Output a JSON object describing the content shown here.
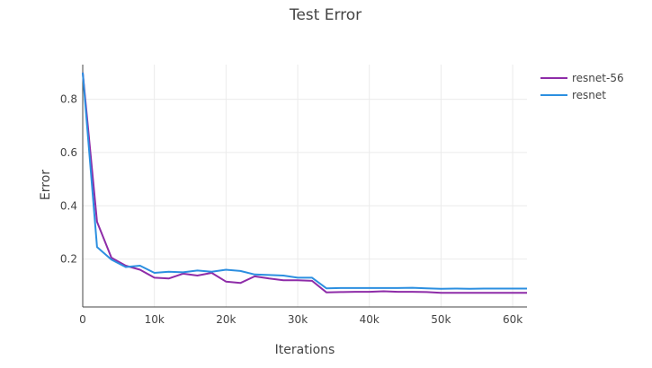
{
  "chart_data": {
    "type": "line",
    "title": "Test Error",
    "xlabel": "Iterations",
    "ylabel": "Error",
    "xlim": [
      0,
      62000
    ],
    "ylim": [
      0.02,
      0.93
    ],
    "x_ticks": [
      0,
      10000,
      20000,
      30000,
      40000,
      50000,
      60000
    ],
    "x_tick_labels": [
      "0",
      "10k",
      "20k",
      "30k",
      "40k",
      "50k",
      "60k"
    ],
    "y_ticks": [
      0.2,
      0.4,
      0.6,
      0.8
    ],
    "y_tick_labels": [
      "0.2",
      "0.4",
      "0.6",
      "0.8"
    ],
    "grid": true,
    "legend_position": "top-right",
    "series": [
      {
        "name": "resnet-56",
        "color": "#8e2ca8",
        "x": [
          0,
          2000,
          4000,
          6000,
          8000,
          10000,
          12000,
          14000,
          16000,
          18000,
          20000,
          22000,
          24000,
          26000,
          28000,
          30000,
          32000,
          34000,
          36000,
          38000,
          40000,
          42000,
          44000,
          46000,
          48000,
          50000,
          52000,
          54000,
          56000,
          58000,
          60000,
          62000
        ],
        "y": [
          0.9,
          0.34,
          0.205,
          0.175,
          0.16,
          0.13,
          0.127,
          0.145,
          0.138,
          0.148,
          0.115,
          0.11,
          0.135,
          0.127,
          0.12,
          0.12,
          0.118,
          0.075,
          0.076,
          0.077,
          0.077,
          0.079,
          0.077,
          0.077,
          0.076,
          0.073,
          0.073,
          0.073,
          0.073,
          0.073,
          0.073,
          0.073
        ]
      },
      {
        "name": "resnet",
        "color": "#2c8fe0",
        "x": [
          0,
          2000,
          4000,
          6000,
          8000,
          10000,
          12000,
          14000,
          16000,
          18000,
          20000,
          22000,
          24000,
          26000,
          28000,
          30000,
          32000,
          34000,
          36000,
          38000,
          40000,
          42000,
          44000,
          46000,
          48000,
          50000,
          52000,
          54000,
          56000,
          58000,
          60000,
          62000
        ],
        "y": [
          0.9,
          0.245,
          0.198,
          0.17,
          0.175,
          0.148,
          0.152,
          0.15,
          0.157,
          0.152,
          0.16,
          0.155,
          0.142,
          0.14,
          0.138,
          0.13,
          0.13,
          0.09,
          0.091,
          0.091,
          0.091,
          0.091,
          0.091,
          0.092,
          0.09,
          0.088,
          0.089,
          0.088,
          0.089,
          0.089,
          0.089,
          0.089
        ]
      }
    ]
  }
}
